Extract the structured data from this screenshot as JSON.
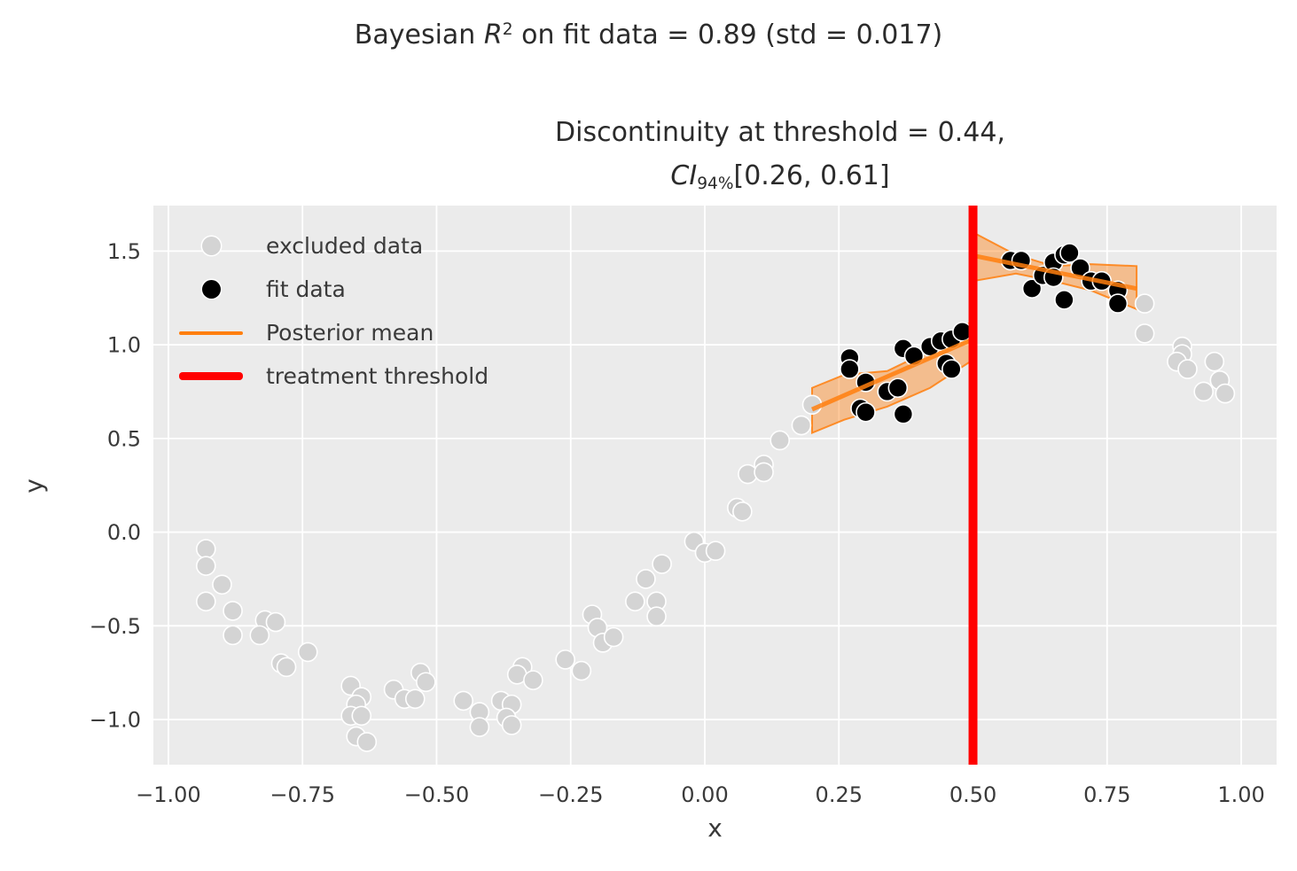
{
  "titles": {
    "suptitle_prefix": "Bayesian ",
    "suptitle_var": "R",
    "suptitle_sup": "2",
    "suptitle_rest": " on fit data = 0.89 (std = 0.017)",
    "subtitle_line1": "Discontinuity at threshold = 0.44,",
    "subtitle_var": "CI",
    "subtitle_sub": "94%",
    "subtitle_rest": "[0.26, 0.61]"
  },
  "axis_labels": {
    "x": "x",
    "y": "y"
  },
  "legend": {
    "items": [
      {
        "label": "excluded data",
        "marker": "dot",
        "color": "#d4d4d4"
      },
      {
        "label": "fit data",
        "marker": "dot",
        "color": "#000000"
      },
      {
        "label": "Posterior mean",
        "marker": "line",
        "color": "#ff7f0e"
      },
      {
        "label": "treatment threshold",
        "marker": "thick-line",
        "color": "#ff0000"
      }
    ]
  },
  "colors": {
    "plot_background": "#ebebeb",
    "grid": "#ffffff",
    "excluded_points": "#d4d4d4",
    "fit_points": "#000000",
    "posterior_mean": "#ff7f0e",
    "credible_band": "#ff7f0e",
    "threshold_line": "#ff0000",
    "tick_text": "#3a3a3a"
  },
  "chart_data": {
    "type": "scatter",
    "xlabel": "x",
    "ylabel": "y",
    "xlim": [
      -1.028,
      1.066
    ],
    "ylim": [
      -1.241,
      1.743
    ],
    "grid": true,
    "legend_position": "upper left",
    "xticks": {
      "values": [
        -1.0,
        -0.75,
        -0.5,
        -0.25,
        0.0,
        0.25,
        0.5,
        0.75,
        1.0
      ],
      "labels": [
        "−1.00",
        "−0.75",
        "−0.50",
        "−0.25",
        "0.00",
        "0.25",
        "0.50",
        "0.75",
        "1.00"
      ]
    },
    "yticks": {
      "values": [
        1.5,
        1.0,
        0.5,
        0.0,
        -0.5,
        -1.0
      ],
      "labels": [
        "1.5",
        "1.0",
        "0.5",
        "0.0",
        "−0.5",
        "−1.0"
      ]
    },
    "series": [
      {
        "name": "excluded data",
        "type": "scatter",
        "color": "#d4d4d4",
        "points": [
          [
            -0.93,
            -0.09
          ],
          [
            -0.93,
            -0.18
          ],
          [
            -0.9,
            -0.28
          ],
          [
            -0.93,
            -0.37
          ],
          [
            -0.88,
            -0.42
          ],
          [
            -0.82,
            -0.47
          ],
          [
            -0.8,
            -0.48
          ],
          [
            -0.88,
            -0.55
          ],
          [
            -0.83,
            -0.55
          ],
          [
            -0.74,
            -0.64
          ],
          [
            -0.79,
            -0.7
          ],
          [
            -0.78,
            -0.72
          ],
          [
            -0.66,
            -0.82
          ],
          [
            -0.64,
            -0.88
          ],
          [
            -0.65,
            -0.92
          ],
          [
            -0.66,
            -0.98
          ],
          [
            -0.64,
            -0.98
          ],
          [
            -0.65,
            -1.09
          ],
          [
            -0.63,
            -1.12
          ],
          [
            -0.58,
            -0.84
          ],
          [
            -0.56,
            -0.89
          ],
          [
            -0.54,
            -0.89
          ],
          [
            -0.53,
            -0.75
          ],
          [
            -0.52,
            -0.8
          ],
          [
            -0.45,
            -0.9
          ],
          [
            -0.42,
            -0.96
          ],
          [
            -0.42,
            -1.04
          ],
          [
            -0.38,
            -0.9
          ],
          [
            -0.36,
            -0.92
          ],
          [
            -0.37,
            -0.99
          ],
          [
            -0.36,
            -1.03
          ],
          [
            -0.34,
            -0.72
          ],
          [
            -0.35,
            -0.76
          ],
          [
            -0.32,
            -0.79
          ],
          [
            -0.26,
            -0.68
          ],
          [
            -0.23,
            -0.74
          ],
          [
            -0.21,
            -0.44
          ],
          [
            -0.2,
            -0.51
          ],
          [
            -0.19,
            -0.59
          ],
          [
            -0.17,
            -0.56
          ],
          [
            -0.13,
            -0.37
          ],
          [
            -0.11,
            -0.25
          ],
          [
            -0.09,
            -0.37
          ],
          [
            -0.09,
            -0.45
          ],
          [
            -0.08,
            -0.17
          ],
          [
            -0.02,
            -0.05
          ],
          [
            0.0,
            -0.11
          ],
          [
            0.02,
            -0.1
          ],
          [
            0.06,
            0.13
          ],
          [
            0.07,
            0.11
          ],
          [
            0.08,
            0.31
          ],
          [
            0.11,
            0.36
          ],
          [
            0.11,
            0.32
          ],
          [
            0.14,
            0.49
          ],
          [
            0.18,
            0.57
          ],
          [
            0.2,
            0.68
          ],
          [
            0.82,
            1.22
          ],
          [
            0.82,
            1.06
          ],
          [
            0.89,
            0.99
          ],
          [
            0.89,
            0.95
          ],
          [
            0.88,
            0.91
          ],
          [
            0.9,
            0.87
          ],
          [
            0.95,
            0.91
          ],
          [
            0.96,
            0.81
          ],
          [
            0.93,
            0.75
          ],
          [
            0.97,
            0.74
          ]
        ]
      },
      {
        "name": "fit data",
        "type": "scatter",
        "color": "#000000",
        "points": [
          [
            0.27,
            0.93
          ],
          [
            0.27,
            0.87
          ],
          [
            0.29,
            0.66
          ],
          [
            0.3,
            0.8
          ],
          [
            0.3,
            0.64
          ],
          [
            0.34,
            0.75
          ],
          [
            0.36,
            0.77
          ],
          [
            0.37,
            0.98
          ],
          [
            0.37,
            0.63
          ],
          [
            0.39,
            0.94
          ],
          [
            0.42,
            0.99
          ],
          [
            0.44,
            1.02
          ],
          [
            0.46,
            1.03
          ],
          [
            0.45,
            0.9
          ],
          [
            0.46,
            0.87
          ],
          [
            0.48,
            1.07
          ],
          [
            0.57,
            1.45
          ],
          [
            0.59,
            1.45
          ],
          [
            0.61,
            1.3
          ],
          [
            0.63,
            1.37
          ],
          [
            0.65,
            1.44
          ],
          [
            0.65,
            1.36
          ],
          [
            0.67,
            1.48
          ],
          [
            0.68,
            1.49
          ],
          [
            0.67,
            1.24
          ],
          [
            0.7,
            1.41
          ],
          [
            0.72,
            1.34
          ],
          [
            0.74,
            1.34
          ],
          [
            0.77,
            1.29
          ],
          [
            0.77,
            1.22
          ]
        ]
      },
      {
        "name": "Posterior mean",
        "type": "line",
        "color": "#ff7f0e",
        "segments": [
          {
            "x": [
              0.2,
              0.5
            ],
            "y": [
              0.655,
              1.03
            ]
          },
          {
            "x": [
              0.5,
              0.805
            ],
            "y": [
              1.476,
              1.3
            ]
          }
        ]
      },
      {
        "name": "credible band",
        "type": "band",
        "color": "#ff7f0e",
        "bands": [
          {
            "x": [
              0.2,
              0.26,
              0.34,
              0.42,
              0.5
            ],
            "top": [
              0.77,
              0.84,
              0.86,
              0.97,
              1.13
            ],
            "bottom": [
              0.53,
              0.6,
              0.67,
              0.77,
              0.92
            ]
          },
          {
            "x": [
              0.5,
              0.58,
              0.65,
              0.72,
              0.805
            ],
            "top": [
              1.6,
              1.48,
              1.42,
              1.43,
              1.42
            ],
            "bottom": [
              1.34,
              1.38,
              1.34,
              1.29,
              1.19
            ]
          }
        ]
      },
      {
        "name": "treatment threshold",
        "type": "vline",
        "color": "#ff0000",
        "x": 0.5
      }
    ]
  }
}
